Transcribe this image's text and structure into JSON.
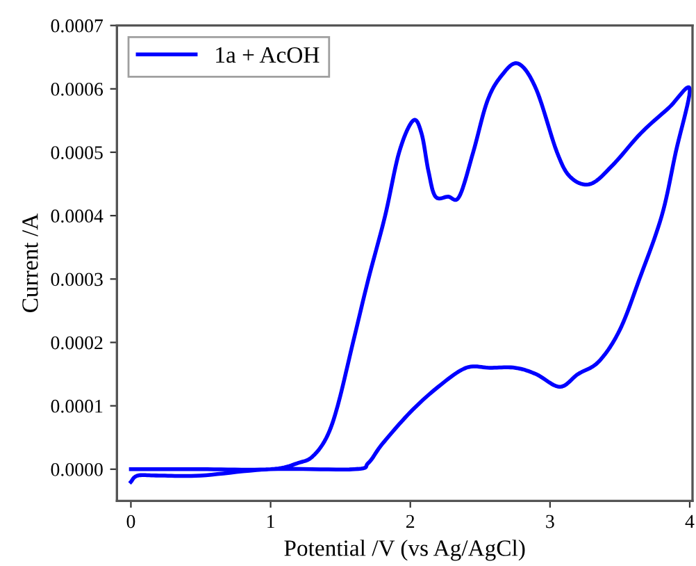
{
  "chart_data": {
    "type": "line",
    "xlabel": "Potential /V (vs Ag/AgCl)",
    "ylabel": "Current /A",
    "series": [
      {
        "name": "1a + AcOH",
        "color": "#0000ff",
        "x": [
          0,
          0.5,
          1.0,
          1.2,
          1.3,
          1.4,
          1.48,
          1.59,
          1.7,
          1.82,
          1.92,
          2.02,
          2.08,
          2.13,
          2.18,
          2.27,
          2.35,
          2.45,
          2.55,
          2.65,
          2.77,
          2.9,
          3.05,
          3.15,
          3.29,
          3.45,
          3.65,
          3.85,
          4.0,
          3.9,
          3.8,
          3.64,
          3.5,
          3.35,
          3.2,
          3.07,
          2.9,
          2.75,
          2.57,
          2.4,
          2.2,
          2.0,
          1.8,
          1.7,
          1.6,
          1.0,
          0.5,
          0.2,
          0.05,
          0.0
        ],
        "values": [
          0.0,
          0.0,
          0.0,
          1e-05,
          2e-05,
          5e-05,
          0.0001,
          0.0002,
          0.0003,
          0.0004,
          0.0005,
          0.00055,
          0.00053,
          0.00047,
          0.00043,
          0.00043,
          0.00043,
          0.0005,
          0.00058,
          0.00062,
          0.00064,
          0.0006,
          0.0005,
          0.00046,
          0.00045,
          0.00048,
          0.00053,
          0.00057,
          0.0006,
          0.0005,
          0.0004,
          0.0003,
          0.00022,
          0.00017,
          0.00015,
          0.00013,
          0.00015,
          0.00016,
          0.00016,
          0.00016,
          0.00013,
          9e-05,
          4e-05,
          1e-05,
          0.0,
          0.0,
          -1e-05,
          -1e-05,
          -1e-05,
          -2e-05
        ]
      }
    ],
    "xlim": [
      -0.1,
      4.02
    ],
    "ylim": [
      -5e-05,
      0.0007
    ],
    "xticks": [
      0,
      1,
      2,
      3,
      4
    ],
    "yticks": [
      {
        "value": 0.0,
        "label": "0.0000"
      },
      {
        "value": 0.0001,
        "label": "0.0001"
      },
      {
        "value": 0.0002,
        "label": "0.0002"
      },
      {
        "value": 0.0003,
        "label": "0.0003"
      },
      {
        "value": 0.0004,
        "label": "0.0004"
      },
      {
        "value": 0.0005,
        "label": "0.0005"
      },
      {
        "value": 0.0006,
        "label": "0.0006"
      },
      {
        "value": 0.0007,
        "label": "0.0007"
      }
    ],
    "grid": false,
    "legend": "top left",
    "line_style": "solid",
    "marker": "none"
  }
}
